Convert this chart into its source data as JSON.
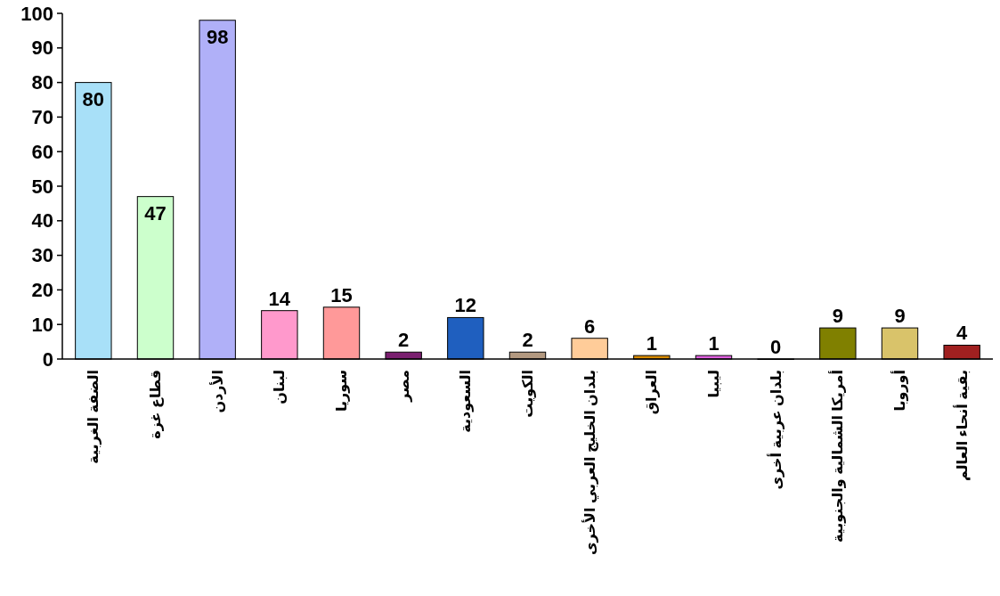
{
  "chart_data": {
    "type": "bar",
    "categories": [
      "الضفة الغربية",
      "قطاع غزة",
      "الأردن",
      "لبنان",
      "سوريا",
      "مصر",
      "السعودية",
      "الكويت",
      "بلدان الخليج العربي الأخرى",
      "العراق",
      "ليبيا",
      "بلدان عربية أخرى",
      "أمريكا الشمالية والجنوبية",
      "أوروبا",
      "بقية أنحاء العالم"
    ],
    "values": [
      80,
      47,
      98,
      14,
      15,
      2,
      12,
      2,
      6,
      1,
      1,
      0,
      9,
      9,
      4
    ],
    "colors": [
      "#a8e0f8",
      "#ccffcc",
      "#b0b0f8",
      "#ff99cc",
      "#ff9999",
      "#7a1f6f",
      "#1f5fbf",
      "#b39980",
      "#ffcc99",
      "#d98c00",
      "#e060e0",
      "#006666",
      "#808000",
      "#d9c36a",
      "#a02020"
    ],
    "ylim": [
      0,
      100
    ],
    "yticks": [
      0,
      10,
      20,
      30,
      40,
      50,
      60,
      70,
      80,
      90,
      100
    ],
    "data_labels": true,
    "grid": false
  }
}
